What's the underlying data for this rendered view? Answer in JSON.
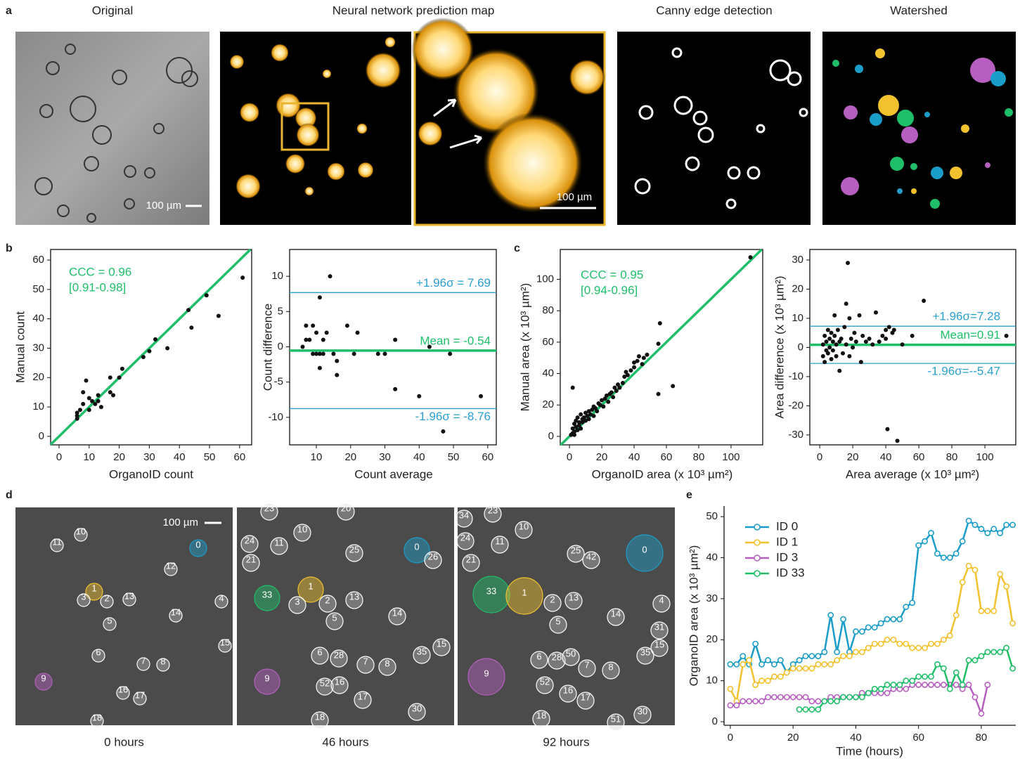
{
  "panel_labels": [
    "a",
    "b",
    "c",
    "d",
    "e"
  ],
  "panel_a": {
    "titles": [
      "Original",
      "Neural network prediction map",
      "Canny edge detection",
      "Watershed"
    ],
    "scale_bars": [
      "100 µm",
      "100 µm"
    ]
  },
  "panel_d": {
    "scale_bar": "100 µm",
    "frames": [
      {
        "caption": "0 hours",
        "labels": [
          "10",
          "11",
          "0",
          "12",
          "1",
          "3",
          "2",
          "13",
          "4",
          "14",
          "5",
          "15",
          "6",
          "7",
          "8",
          "9",
          "16",
          "17",
          "18"
        ]
      },
      {
        "caption": "46 hours",
        "labels": [
          "23",
          "10",
          "20",
          "24",
          "11",
          "25",
          "0",
          "26",
          "21",
          "33",
          "1",
          "3",
          "2",
          "13",
          "5",
          "14",
          "6",
          "28",
          "7",
          "8",
          "35",
          "15",
          "9",
          "52",
          "16",
          "17",
          "30",
          "18"
        ]
      },
      {
        "caption": "92 hours",
        "labels": [
          "34",
          "23",
          "10",
          "24",
          "11",
          "25",
          "42",
          "0",
          "21",
          "33",
          "1",
          "2",
          "13",
          "5",
          "14",
          "4",
          "31",
          "15",
          "6",
          "28",
          "50",
          "7",
          "8",
          "35",
          "9",
          "52",
          "16",
          "17",
          "30",
          "18",
          "51"
        ]
      }
    ]
  },
  "chart_data": [
    {
      "type": "scatter",
      "x_label": "OrganoID count",
      "y_label": "Manual count",
      "annotations": [
        "CCC = 0.96",
        "[0.91-0.98]"
      ],
      "x": [
        6,
        6,
        6,
        7,
        8,
        8,
        9,
        10,
        10,
        11,
        12,
        13,
        13,
        14,
        17,
        17,
        18,
        20,
        21,
        28,
        30,
        32,
        36,
        43,
        44,
        49,
        53,
        61
      ],
      "values": [
        6,
        7,
        8,
        9,
        15,
        11,
        19,
        9,
        13,
        12,
        11,
        14,
        12,
        10,
        20,
        15,
        14,
        20,
        23,
        27,
        29,
        33,
        30,
        43,
        37,
        48,
        41,
        54
      ],
      "color": "#111111",
      "line_color": "#1fbf6a",
      "xlim": [
        -2.8,
        64
      ],
      "ylim": [
        -2.9,
        63.6
      ],
      "xticks": [
        0,
        10,
        20,
        30,
        40,
        50,
        60
      ],
      "yticks": [
        0,
        10,
        20,
        30,
        40,
        50,
        60
      ]
    },
    {
      "type": "scatter",
      "x_label": "Count average",
      "y_label": "Count difference",
      "x": [
        6,
        7,
        7,
        8,
        9,
        9,
        10,
        10,
        11,
        11,
        11,
        12,
        12,
        13,
        14,
        15,
        16,
        16,
        19,
        21,
        22,
        28,
        30,
        33,
        33,
        40,
        43,
        47,
        49,
        58
      ],
      "values": [
        0,
        1,
        3,
        1,
        3,
        -1,
        -1,
        2,
        7,
        -1,
        -3,
        -1,
        1,
        2,
        10,
        -1,
        -4,
        -2,
        3,
        -1,
        2,
        -1,
        -1,
        1,
        -6,
        -7,
        0,
        -12,
        -1,
        -7
      ],
      "color": "#111111",
      "hlines": [
        {
          "value": 7.69,
          "label": "+1.96σ = 7.69",
          "color": "#2aa0d0"
        },
        {
          "value": -0.54,
          "label": "Mean = -0.54",
          "color": "#1fbf6a"
        },
        {
          "value": -8.76,
          "label": "-1.96σ = -8.76",
          "color": "#2aa0d0"
        }
      ],
      "xlim": [
        2.2,
        62.5
      ],
      "ylim": [
        -13.9,
        13.8
      ],
      "xticks": [
        10,
        20,
        30,
        40,
        50,
        60
      ],
      "yticks": [
        -10,
        -5,
        0,
        5,
        10
      ]
    },
    {
      "type": "scatter",
      "x_label": "OrganoID area (x 10³ µm²)",
      "y_label": "Manual area (x 10³ µm²)",
      "annotations": [
        "CCC = 0.95",
        "[0.94-0.96]"
      ],
      "x": [
        2,
        2,
        3,
        3,
        4,
        4,
        5,
        5,
        6,
        6,
        7,
        7,
        8,
        8,
        9,
        10,
        10,
        11,
        12,
        12,
        13,
        14,
        15,
        15,
        16,
        17,
        18,
        19,
        20,
        21,
        22,
        23,
        24,
        25,
        26,
        27,
        28,
        29,
        30,
        31,
        33,
        34,
        35,
        36,
        38,
        40,
        40,
        42,
        43,
        45,
        46,
        48,
        55,
        55,
        56,
        64,
        112,
        1,
        2,
        3
      ],
      "values": [
        31,
        5,
        8,
        3,
        6,
        10,
        4,
        12,
        7,
        9,
        5,
        14,
        9,
        11,
        12,
        10,
        15,
        13,
        11,
        16,
        14,
        17,
        13,
        19,
        18,
        16,
        21,
        20,
        23,
        19,
        24,
        26,
        22,
        27,
        28,
        25,
        31,
        29,
        33,
        31,
        34,
        38,
        41,
        39,
        42,
        47,
        44,
        48,
        51,
        46,
        50,
        52,
        27,
        59,
        72,
        32,
        114,
        1,
        2,
        1
      ],
      "color": "#111111",
      "line_color": "#1fbf6a",
      "xlim": [
        -5.7,
        119.6
      ],
      "ylim": [
        -5.4,
        119
      ],
      "xticks": [
        0,
        20,
        40,
        60,
        80,
        100
      ],
      "yticks": [
        0,
        20,
        40,
        60,
        80,
        100
      ]
    },
    {
      "type": "scatter",
      "x_label": "Area average (x 10³ µm²)",
      "y_label": "Area difference (x 10³ µm²)",
      "x": [
        2,
        2,
        3,
        3,
        4,
        4,
        5,
        5,
        6,
        6,
        7,
        7,
        8,
        8,
        9,
        9,
        10,
        10,
        11,
        12,
        12,
        13,
        14,
        15,
        16,
        16,
        17,
        18,
        18,
        19,
        20,
        21,
        22,
        24,
        25,
        26,
        28,
        30,
        32,
        34,
        36,
        38,
        40,
        40,
        41,
        42,
        44,
        45,
        47,
        50,
        56,
        63,
        113
      ],
      "values": [
        1,
        -3,
        4,
        -5,
        2,
        -1,
        6,
        -2,
        3,
        0,
        -4,
        5,
        2,
        -1,
        4,
        11,
        1,
        -3,
        6,
        2,
        -8,
        3,
        -2,
        7,
        15,
        1,
        29,
        10,
        -3,
        3,
        0,
        5,
        2,
        11,
        -5,
        4,
        2,
        3,
        1,
        12,
        2,
        4,
        6,
        3,
        -28,
        7,
        5,
        6,
        -32,
        1,
        4,
        16,
        4
      ],
      "color": "#111111",
      "hlines": [
        {
          "value": 7.28,
          "label": "+1.96σ=7.28",
          "color": "#2aa0d0"
        },
        {
          "value": 0.91,
          "label": "Mean=0.91",
          "color": "#1fbf6a"
        },
        {
          "value": -5.47,
          "label": "-1.96σ=--5.47",
          "color": "#2aa0d0"
        }
      ],
      "xlim": [
        -6,
        118.7
      ],
      "ylim": [
        -33.4,
        33.6
      ],
      "xticks": [
        0,
        20,
        40,
        60,
        80,
        100
      ],
      "yticks": [
        -30,
        -20,
        -10,
        0,
        10,
        20,
        30
      ]
    },
    {
      "type": "line",
      "x_label": "Time (hours)",
      "y_label": "OrganoID area (x 10³ µm²)",
      "legend": "upper left",
      "x": [
        0,
        2,
        4,
        6,
        8,
        10,
        12,
        14,
        16,
        18,
        20,
        22,
        24,
        26,
        28,
        30,
        32,
        34,
        36,
        38,
        40,
        42,
        44,
        46,
        48,
        50,
        52,
        54,
        56,
        58,
        60,
        62,
        64,
        66,
        68,
        70,
        72,
        74,
        76,
        78,
        80,
        82,
        84,
        86,
        88,
        90
      ],
      "series": [
        {
          "name": "ID 0",
          "color": "#1a9dc9",
          "values": [
            14,
            14,
            16,
            14,
            19,
            14,
            15,
            14,
            15,
            12,
            14,
            15,
            16,
            16,
            16,
            17,
            26,
            17,
            25,
            17,
            22,
            22,
            23,
            23,
            24,
            25,
            25,
            25,
            28,
            29,
            43,
            44,
            46,
            41,
            40,
            40,
            41,
            44,
            49,
            48,
            47,
            46,
            47,
            46,
            48,
            48
          ]
        },
        {
          "name": "ID 1",
          "color": "#f2c12e",
          "values": [
            8,
            5,
            14,
            15,
            9,
            10,
            10,
            11,
            11,
            12,
            13,
            13,
            13,
            13,
            14,
            14,
            14,
            15,
            16,
            16,
            17,
            17,
            18,
            19,
            19,
            20,
            20,
            19,
            19,
            18,
            18,
            18,
            19,
            19,
            20,
            21,
            26,
            34,
            38,
            37,
            27,
            27,
            27,
            36,
            33,
            24
          ]
        },
        {
          "name": "ID 3",
          "color": "#b65fc0",
          "values": [
            4,
            4,
            5,
            5,
            5,
            5,
            6,
            6,
            6,
            6,
            6,
            6,
            6,
            5,
            5,
            5,
            6,
            6,
            6,
            6,
            6,
            7,
            7,
            7,
            7,
            7,
            8,
            8,
            8,
            9,
            9,
            9,
            9,
            9,
            9,
            9,
            9,
            8,
            9,
            6,
            2,
            9,
            null,
            null,
            null,
            null
          ]
        },
        {
          "name": "ID 33",
          "color": "#1fbf6a",
          "values": [
            null,
            null,
            null,
            null,
            null,
            null,
            null,
            null,
            null,
            null,
            null,
            3,
            3,
            3,
            3,
            5,
            5,
            5,
            6,
            6,
            6,
            6,
            7,
            8,
            8,
            9,
            9,
            9,
            10,
            10,
            11,
            11,
            11,
            14,
            13,
            8,
            12,
            9,
            15,
            15,
            16,
            17,
            17,
            17,
            18,
            13
          ]
        }
      ],
      "xlim": [
        -2,
        91
      ],
      "ylim": [
        -0.86,
        52.6
      ],
      "xticks": [
        0,
        20,
        40,
        60,
        80
      ],
      "yticks": [
        0,
        10,
        20,
        30,
        40,
        50
      ]
    }
  ]
}
